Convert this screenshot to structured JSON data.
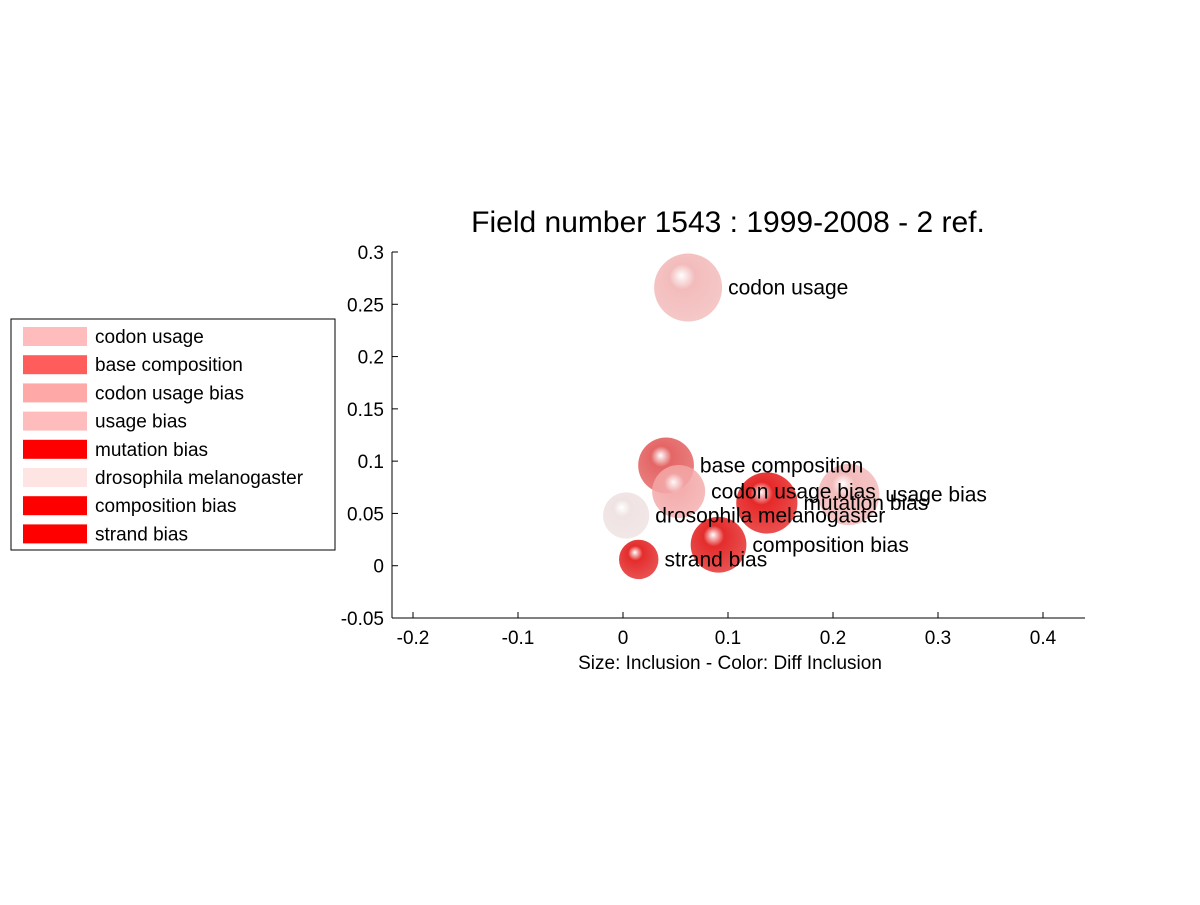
{
  "chart_data": {
    "type": "scatter",
    "title": "Field number 1543 : 1999-2008  - 2 ref.",
    "xlabel": "Size: Inclusion - Color: Diff Inclusion",
    "ylabel": "",
    "xlim": [
      -0.22,
      0.44
    ],
    "ylim": [
      -0.05,
      0.3
    ],
    "xticks": [
      -0.2,
      -0.1,
      0,
      0.1,
      0.2,
      0.3,
      0.4
    ],
    "xtick_labels": [
      "-0.2",
      "-0.1",
      "0",
      "0.1",
      "0.2",
      "0.3",
      "0.4"
    ],
    "yticks": [
      -0.05,
      0,
      0.05,
      0.1,
      0.15,
      0.2,
      0.25,
      0.3
    ],
    "ytick_labels": [
      "-0.05",
      "0",
      "0.05",
      "0.1",
      "0.15",
      "0.2",
      "0.25",
      "0.3"
    ],
    "grid": false,
    "legend_position": "left",
    "points": [
      {
        "label": "codon usage",
        "x": 0.062,
        "y": 0.266,
        "size": 1.0,
        "color": "#f2b6b6"
      },
      {
        "label": "base composition",
        "x": 0.041,
        "y": 0.096,
        "size": 0.82,
        "color": "#e25858"
      },
      {
        "label": "codon usage bias",
        "x": 0.053,
        "y": 0.071,
        "size": 0.78,
        "color": "#f3a6a6"
      },
      {
        "label": "usage bias",
        "x": 0.215,
        "y": 0.068,
        "size": 0.9,
        "color": "#f2b6b6"
      },
      {
        "label": "mutation bias",
        "x": 0.137,
        "y": 0.06,
        "size": 0.9,
        "color": "#e41616"
      },
      {
        "label": "drosophila melanogaster",
        "x": 0.003,
        "y": 0.048,
        "size": 0.68,
        "color": "#eee0e0"
      },
      {
        "label": "composition bias",
        "x": 0.091,
        "y": 0.02,
        "size": 0.82,
        "color": "#e21a1a"
      },
      {
        "label": "strand bias",
        "x": 0.015,
        "y": 0.006,
        "size": 0.58,
        "color": "#e21a1a"
      }
    ],
    "legend": [
      {
        "label": "codon usage",
        "color": "#ffbcbc"
      },
      {
        "label": "base composition",
        "color": "#ff5c5c"
      },
      {
        "label": "codon usage bias",
        "color": "#ffa8a8"
      },
      {
        "label": "usage bias",
        "color": "#ffbcbc"
      },
      {
        "label": "mutation bias",
        "color": "#ff0000"
      },
      {
        "label": "drosophila melanogaster",
        "color": "#ffe4e4"
      },
      {
        "label": "composition bias",
        "color": "#ff0000"
      },
      {
        "label": "strand bias",
        "color": "#ff0000"
      }
    ]
  }
}
